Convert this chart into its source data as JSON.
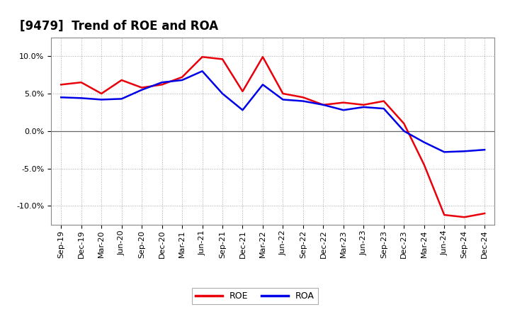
{
  "title": "[9479]  Trend of ROE and ROA",
  "x_labels": [
    "Sep-19",
    "Dec-19",
    "Mar-20",
    "Jun-20",
    "Sep-20",
    "Dec-20",
    "Mar-21",
    "Jun-21",
    "Sep-21",
    "Dec-21",
    "Mar-22",
    "Jun-22",
    "Sep-22",
    "Dec-22",
    "Mar-23",
    "Jun-23",
    "Sep-23",
    "Dec-23",
    "Mar-24",
    "Jun-24",
    "Sep-24",
    "Dec-24"
  ],
  "roe": [
    6.2,
    6.5,
    5.0,
    6.8,
    5.8,
    6.2,
    7.2,
    9.9,
    9.6,
    5.3,
    9.9,
    5.0,
    4.5,
    3.5,
    3.8,
    3.5,
    4.0,
    1.0,
    -4.5,
    -11.2,
    -11.5,
    -11.0
  ],
  "roa": [
    4.5,
    4.4,
    4.2,
    4.3,
    5.5,
    6.5,
    6.8,
    8.0,
    5.0,
    2.8,
    6.2,
    4.2,
    4.0,
    3.5,
    2.8,
    3.2,
    3.0,
    0.0,
    -1.5,
    -2.8,
    -2.7,
    -2.5
  ],
  "roe_color": "#e8000a",
  "roa_color": "#0000e8",
  "bg_color": "#ffffff",
  "plot_bg_color": "#ffffff",
  "grid_color": "#aaaaaa",
  "ylim": [
    -12.5,
    12.5
  ],
  "yticks": [
    -10.0,
    -5.0,
    0.0,
    5.0,
    10.0
  ],
  "linewidth": 1.8,
  "title_fontsize": 12,
  "tick_fontsize": 8,
  "legend_fontsize": 9
}
